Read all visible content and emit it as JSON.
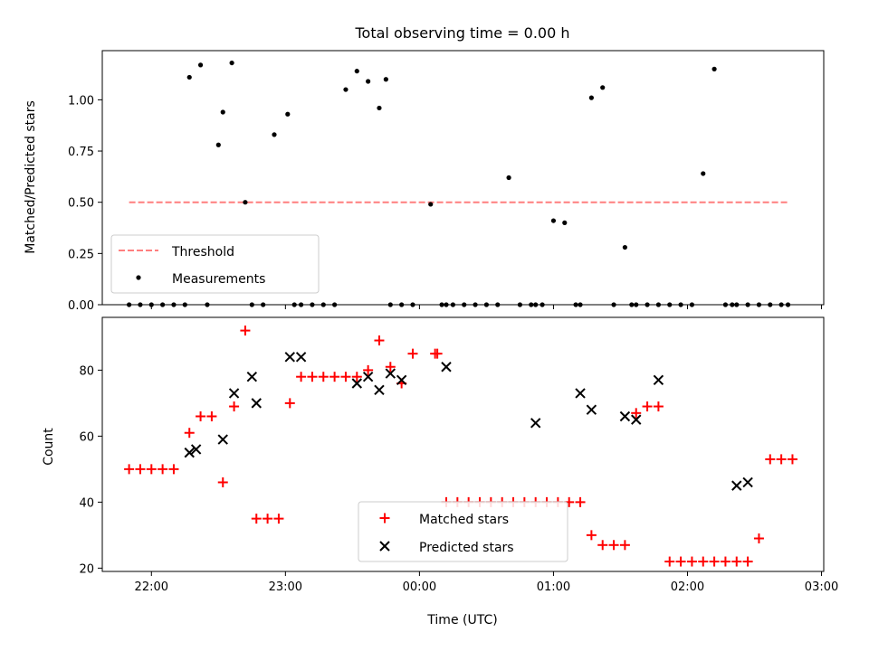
{
  "title": "Total observing time = 0.00 h",
  "colors": {
    "threshold": "#ff7f7f",
    "measurements": "#000000",
    "matched": "#ff0000",
    "predicted": "#000000"
  },
  "chart_data": [
    {
      "type": "scatter",
      "ylabel": "Matched/Predicted stars",
      "ylim": [
        0,
        1.24
      ],
      "yticks": [
        "0.00",
        "0.25",
        "0.50",
        "0.75",
        "1.00"
      ],
      "xlim": [
        "21:38",
        "03:01"
      ],
      "grid": false,
      "legend": {
        "position": "lower-left",
        "threshold_label": "Threshold",
        "measurements_label": "Measurements"
      },
      "threshold": {
        "value": 0.5,
        "x_start": "21:50",
        "x_end": "02:45"
      },
      "measurements": {
        "x": [
          "21:50",
          "21:55",
          "22:00",
          "22:05",
          "22:10",
          "22:15",
          "22:17",
          "22:22",
          "22:25",
          "22:30",
          "22:32",
          "22:36",
          "22:42",
          "22:45",
          "22:50",
          "22:55",
          "23:01",
          "23:04",
          "23:07",
          "23:12",
          "23:17",
          "23:22",
          "23:27",
          "23:32",
          "23:37",
          "23:42",
          "23:45",
          "23:47",
          "23:52",
          "23:57",
          "24:05",
          "24:10",
          "24:12",
          "24:15",
          "24:20",
          "24:25",
          "24:30",
          "24:35",
          "24:40",
          "24:45",
          "24:50",
          "24:52",
          "24:55",
          "25:00",
          "25:05",
          "25:10",
          "25:12",
          "25:17",
          "25:22",
          "25:27",
          "25:32",
          "25:35",
          "25:37",
          "25:42",
          "25:47",
          "25:52",
          "25:57",
          "26:02",
          "26:07",
          "26:12",
          "26:17",
          "26:20",
          "26:22",
          "26:27",
          "26:32",
          "26:37",
          "26:42",
          "26:45"
        ],
        "y": [
          0,
          0,
          0,
          0,
          0,
          0,
          1.11,
          1.17,
          0,
          0.78,
          0.94,
          1.18,
          0.5,
          0,
          0,
          0.83,
          0.93,
          0,
          0,
          0,
          0,
          0,
          1.05,
          1.14,
          1.09,
          0.96,
          1.1,
          0,
          0,
          0,
          0.49,
          0,
          0,
          0,
          0,
          0,
          0,
          0,
          0.62,
          0,
          0,
          0,
          0,
          0.41,
          0.4,
          0,
          0,
          1.01,
          1.06,
          0,
          0.28,
          0,
          0,
          0,
          0,
          0,
          0,
          0,
          0.64,
          1.15,
          0,
          0,
          0,
          0,
          0,
          0,
          0,
          0
        ]
      }
    },
    {
      "type": "scatter",
      "ylabel": "Count",
      "xlabel": "Time (UTC)",
      "ylim": [
        19,
        96
      ],
      "yticks": [
        "20",
        "40",
        "60",
        "80"
      ],
      "xticks": [
        "22:00",
        "23:00",
        "00:00",
        "01:00",
        "02:00",
        "03:00"
      ],
      "legend": {
        "position": "lower-center",
        "matched_label": "Matched stars",
        "predicted_label": "Predicted stars"
      },
      "series": [
        {
          "name": "Matched stars",
          "marker": "+",
          "x": [
            "21:50",
            "21:55",
            "22:00",
            "22:05",
            "22:10",
            "22:17",
            "22:22",
            "22:27",
            "22:32",
            "22:37",
            "22:42",
            "22:47",
            "22:52",
            "22:57",
            "23:02",
            "23:07",
            "23:12",
            "23:17",
            "23:22",
            "23:27",
            "23:32",
            "23:37",
            "23:42",
            "23:47",
            "23:52",
            "23:57",
            "24:07",
            "24:08",
            "24:12",
            "24:17",
            "24:22",
            "24:27",
            "24:32",
            "24:37",
            "24:42",
            "24:47",
            "24:52",
            "24:57",
            "25:02",
            "25:07",
            "25:12",
            "25:17",
            "25:22",
            "25:27",
            "25:32",
            "25:37",
            "25:42",
            "25:47",
            "25:52",
            "25:57",
            "26:02",
            "26:07",
            "26:12",
            "26:17",
            "26:22",
            "26:27",
            "26:32",
            "26:37",
            "26:42",
            "26:47"
          ],
          "y": [
            50,
            50,
            50,
            50,
            50,
            61,
            66,
            66,
            46,
            69,
            92,
            35,
            35,
            35,
            70,
            78,
            78,
            78,
            78,
            78,
            78,
            80,
            89,
            81,
            76,
            85,
            85,
            85,
            40,
            40,
            40,
            40,
            40,
            40,
            40,
            40,
            40,
            40,
            40,
            40,
            40,
            30,
            27,
            27,
            27,
            67,
            69,
            69,
            22,
            22,
            22,
            22,
            22,
            22,
            22,
            22,
            29,
            53,
            53,
            53
          ]
        },
        {
          "name": "Predicted stars",
          "marker": "x",
          "x": [
            "22:17",
            "22:20",
            "22:32",
            "22:37",
            "22:45",
            "22:47",
            "23:02",
            "23:07",
            "23:32",
            "23:37",
            "23:42",
            "23:47",
            "23:52",
            "24:12",
            "24:52",
            "25:12",
            "25:17",
            "25:32",
            "25:37",
            "25:47",
            "26:22",
            "26:27"
          ],
          "y": [
            55,
            56,
            59,
            73,
            78,
            70,
            84,
            84,
            76,
            78,
            74,
            79,
            77,
            81,
            64,
            73,
            68,
            66,
            65,
            77,
            45,
            46
          ]
        }
      ]
    }
  ]
}
